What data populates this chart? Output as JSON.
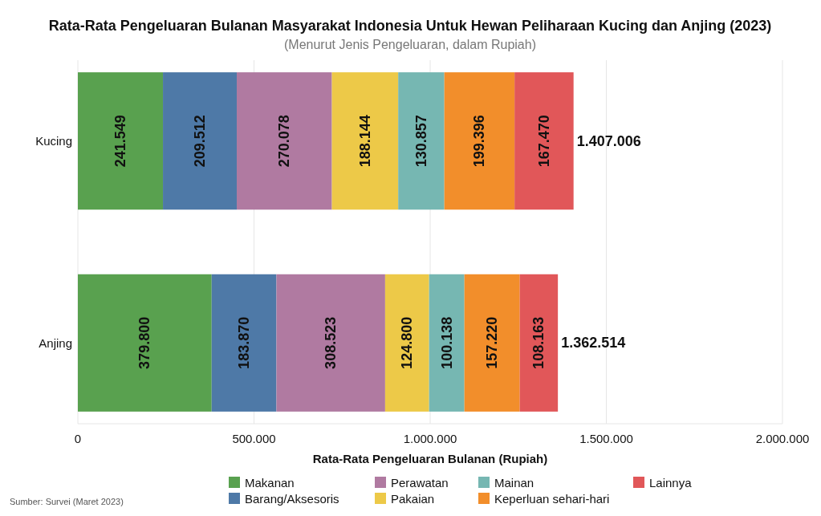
{
  "chart_data": {
    "type": "bar",
    "orientation": "horizontal",
    "stacked": true,
    "title": "Rata-Rata Pengeluaran Bulanan Masyarakat Indonesia Untuk Hewan Peliharaan Kucing dan Anjing (2023)",
    "subtitle": "(Menurut Jenis Pengeluaran, dalam Rupiah)",
    "xlabel": "Rata-Rata Pengeluaran Bulanan (Rupiah)",
    "categories": [
      "Kucing",
      "Anjing"
    ],
    "series": [
      {
        "name": "Makanan",
        "color": "#59a14f",
        "values": [
          241549,
          379800
        ],
        "value_labels": [
          "241.549",
          "379.800"
        ]
      },
      {
        "name": "Barang/Aksesoris",
        "color": "#4e79a7",
        "values": [
          209512,
          183870
        ],
        "value_labels": [
          "209.512",
          "183.870"
        ]
      },
      {
        "name": "Perawatan",
        "color": "#b07aa1",
        "values": [
          270078,
          308523
        ],
        "value_labels": [
          "270.078",
          "308.523"
        ]
      },
      {
        "name": "Pakaian",
        "color": "#edc948",
        "values": [
          188144,
          124800
        ],
        "value_labels": [
          "188.144",
          "124.800"
        ]
      },
      {
        "name": "Mainan",
        "color": "#76b7b2",
        "values": [
          130857,
          100138
        ],
        "value_labels": [
          "130.857",
          "100.138"
        ]
      },
      {
        "name": "Keperluan sehari-hari",
        "color": "#f28e2b",
        "values": [
          199396,
          157220
        ],
        "value_labels": [
          "199.396",
          "157.220"
        ]
      },
      {
        "name": "Lainnya",
        "color": "#e15759",
        "values": [
          167470,
          108163
        ],
        "value_labels": [
          "167.470",
          "108.163"
        ]
      }
    ],
    "totals": [
      "1.407.006",
      "1.362.514"
    ],
    "xlim": [
      0,
      2000000
    ],
    "xticks": [
      0,
      {
        "value": 500000,
        "label": "500.000"
      },
      {
        "value": 1000000,
        "label": "1.000.000"
      },
      {
        "value": 1500000,
        "label": "1.500.000"
      },
      {
        "value": 2000000,
        "label": "2.000.000"
      }
    ],
    "grid": "x",
    "legend": "bottom",
    "annotations": [
      "Sumber: Survei (Maret 2023)"
    ]
  }
}
